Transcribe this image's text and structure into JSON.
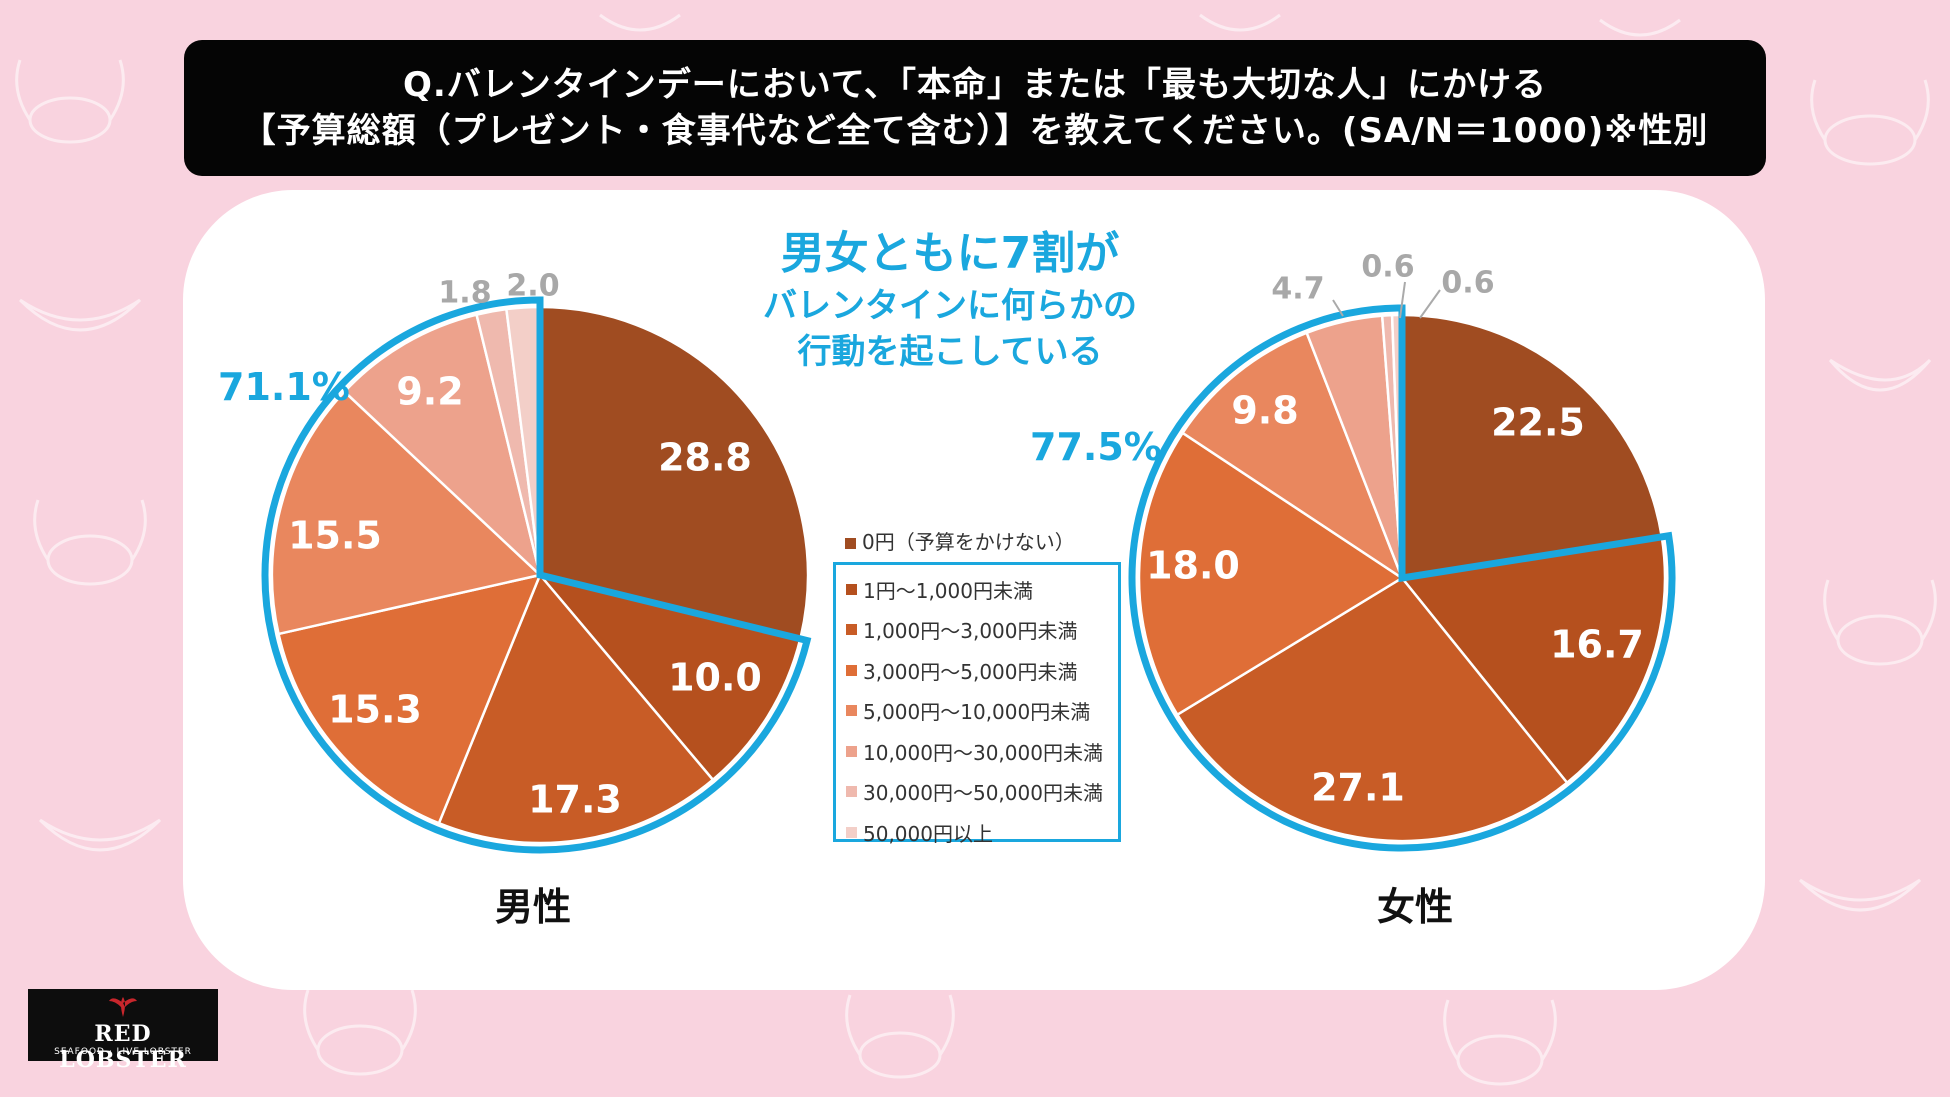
{
  "title": {
    "line1": "Q.バレンタインデーにおいて、「本命」または「最も大切な人」にかける",
    "line2": "【予算総額（プレゼント・食事代など全て含む）】を教えてください。(SA/N＝1000)※性別"
  },
  "callout": {
    "line1": "男女ともに7割が",
    "line2": "バレンタインに何らかの",
    "line3": "行動を起こしている"
  },
  "legend": {
    "first": "0円（予算をかけない）",
    "items": [
      "1円〜1,000円未満",
      "1,000円〜3,000円未満",
      "3,000円〜5,000円未満",
      "5,000円〜10,000円未満",
      "10,000円〜30,000円未満",
      "30,000円〜50,000円未満",
      "50,000円以上"
    ]
  },
  "colors": [
    "#a04c21",
    "#b5501e",
    "#c85c26",
    "#df6e37",
    "#e9875e",
    "#eda28c",
    "#efb9ae",
    "#f3cfc8"
  ],
  "highlight_color": "#1aa7de",
  "chart_data": [
    {
      "type": "pie",
      "title": "男性",
      "categories": [
        "0円（予算をかけない）",
        "1円〜1,000円未満",
        "1,000円〜3,000円未満",
        "3,000円〜5,000円未満",
        "5,000円〜10,000円未満",
        "10,000円〜30,000円未満",
        "30,000円〜50,000円未満",
        "50,000円以上"
      ],
      "values": [
        28.8,
        10.0,
        17.3,
        15.3,
        15.5,
        9.2,
        1.8,
        2.0
      ],
      "labels": [
        "28.8",
        "10.0",
        "17.3",
        "15.3",
        "15.5",
        "9.2",
        "1.8",
        "2.0"
      ],
      "highlight_label": "71.1%"
    },
    {
      "type": "pie",
      "title": "女性",
      "categories": [
        "0円（予算をかけない）",
        "1円〜1,000円未満",
        "1,000円〜3,000円未満",
        "3,000円〜5,000円未満",
        "5,000円〜10,000円未満",
        "10,000円〜30,000円未満",
        "30,000円〜50,000円未満",
        "50,000円以上"
      ],
      "values": [
        22.5,
        16.7,
        27.1,
        18.0,
        9.8,
        4.7,
        0.6,
        0.6
      ],
      "labels": [
        "22.5",
        "16.7",
        "27.1",
        "18.0",
        "9.8",
        "4.7",
        "0.6",
        "0.6"
      ],
      "highlight_label": "77.5%"
    }
  ],
  "logo": {
    "name": "RED LOBSTER",
    "tagline": "SEAFOOD · LIVE LOBSTER"
  }
}
